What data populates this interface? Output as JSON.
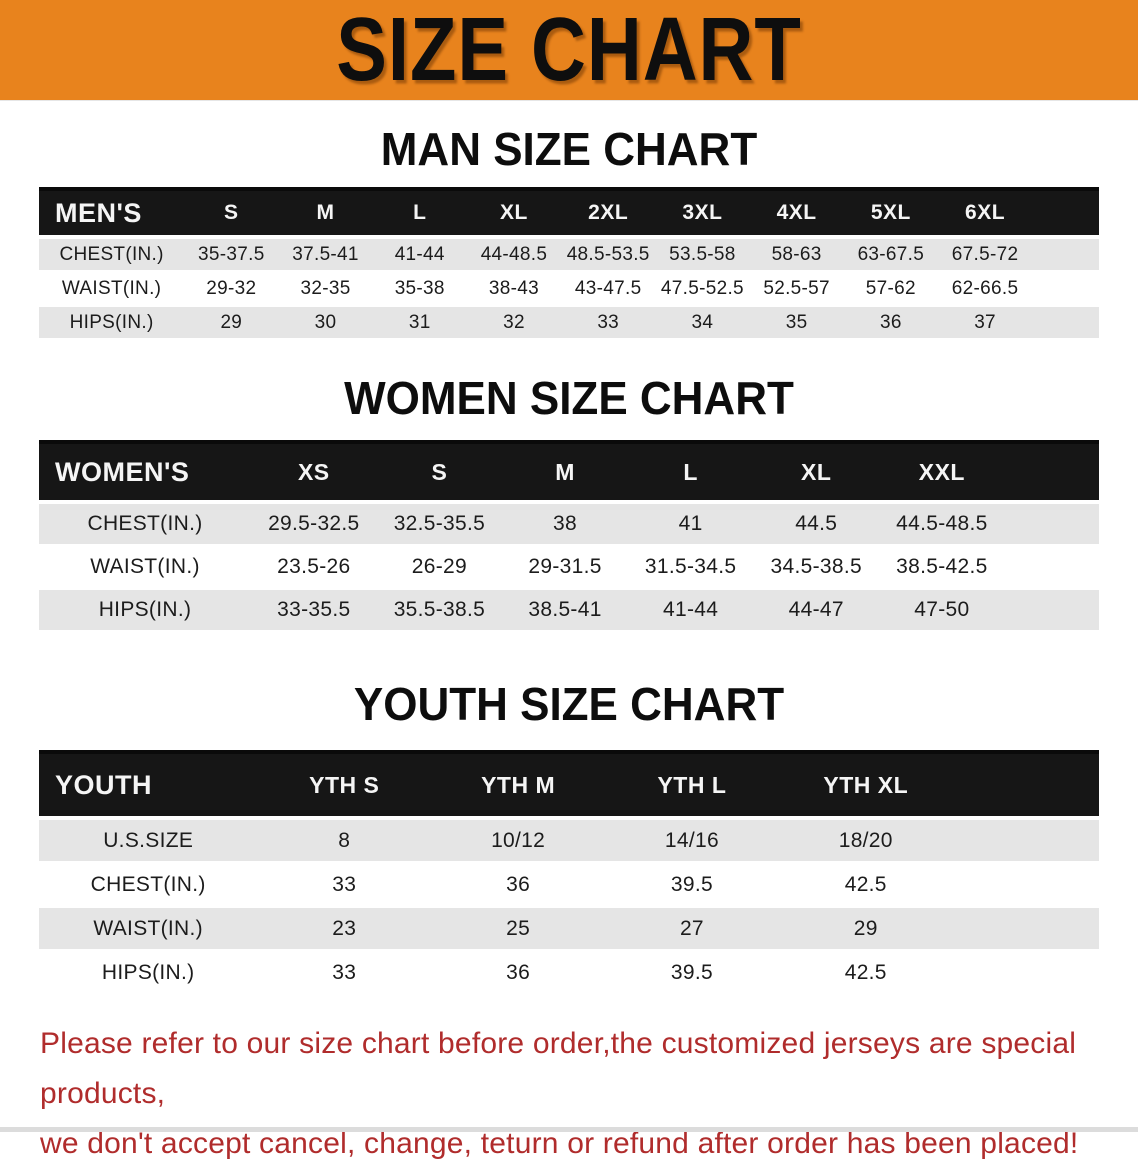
{
  "banner": {
    "title": "SIZE CHART"
  },
  "colors": {
    "banner_bg": "#E8831D",
    "header_bg": "#161616",
    "row_shade": "#E5E5E5",
    "notice_red": "#B02C2C"
  },
  "tables": {
    "men": {
      "section_title": "MAN SIZE CHART",
      "header_label": "MEN'S",
      "columns": [
        "S",
        "M",
        "L",
        "XL",
        "2XL",
        "3XL",
        "4XL",
        "5XL",
        "6XL"
      ],
      "rows": [
        {
          "label": "CHEST(IN.)",
          "values": [
            "35-37.5",
            "37.5-41",
            "41-44",
            "44-48.5",
            "48.5-53.5",
            "53.5-58",
            "58-63",
            "63-67.5",
            "67.5-72"
          ]
        },
        {
          "label": "WAIST(IN.)",
          "values": [
            "29-32",
            "32-35",
            "35-38",
            "38-43",
            "43-47.5",
            "47.5-52.5",
            "52.5-57",
            "57-62",
            "62-66.5"
          ]
        },
        {
          "label": "HIPS(IN.)",
          "values": [
            "29",
            "30",
            "31",
            "32",
            "33",
            "34",
            "35",
            "36",
            "37"
          ]
        }
      ]
    },
    "women": {
      "section_title": "WOMEN SIZE CHART",
      "header_label": "WOMEN'S",
      "columns": [
        "XS",
        "S",
        "M",
        "L",
        "XL",
        "XXL"
      ],
      "rows": [
        {
          "label": "CHEST(IN.)",
          "values": [
            "29.5-32.5",
            "32.5-35.5",
            "38",
            "41",
            "44.5",
            "44.5-48.5"
          ]
        },
        {
          "label": "WAIST(IN.)",
          "values": [
            "23.5-26",
            "26-29",
            "29-31.5",
            "31.5-34.5",
            "34.5-38.5",
            "38.5-42.5"
          ]
        },
        {
          "label": "HIPS(IN.)",
          "values": [
            "33-35.5",
            "35.5-38.5",
            "38.5-41",
            "41-44",
            "44-47",
            "47-50"
          ]
        }
      ]
    },
    "youth": {
      "section_title": "YOUTH SIZE CHART",
      "header_label": "YOUTH",
      "columns": [
        "YTH S",
        "YTH M",
        "YTH L",
        "YTH XL"
      ],
      "rows": [
        {
          "label": "U.S.SIZE",
          "values": [
            "8",
            "10/12",
            "14/16",
            "18/20"
          ]
        },
        {
          "label": "CHEST(IN.)",
          "values": [
            "33",
            "36",
            "39.5",
            "42.5"
          ]
        },
        {
          "label": "WAIST(IN.)",
          "values": [
            "23",
            "25",
            "27",
            "29"
          ]
        },
        {
          "label": "HIPS(IN.)",
          "values": [
            "33",
            "36",
            "39.5",
            "42.5"
          ]
        }
      ]
    }
  },
  "footer": {
    "line1": "Please refer to our size chart before order,the customized jerseys are special products,",
    "line2": "we don't accept cancel, change, teturn or refund after order has been placed!"
  }
}
